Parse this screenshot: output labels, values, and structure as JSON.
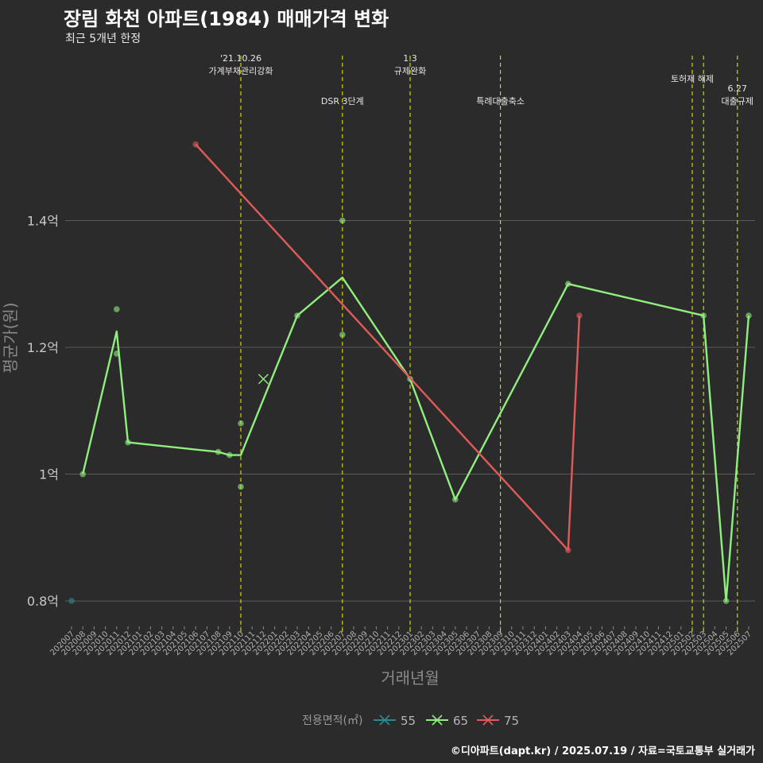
{
  "title": "장림 화천 아파트(1984) 매매가격 변화",
  "subtitle": "최근 5개년 한정",
  "caption": "©디아파트(dapt.kr) / 2025.07.19 / 자료=국토교통부 실거래가",
  "colors": {
    "55": "#2a8a8f",
    "65": "#90ee7e",
    "75": "#e05a5a",
    "vline": "#d4d400",
    "grid": "#6a6a6a",
    "text": "#bdbdbd"
  },
  "chart_data": {
    "type": "line",
    "xlabel": "거래년월",
    "ylabel": "평균가(원)",
    "x_categories": [
      "202007",
      "202008",
      "202009",
      "202010",
      "202011",
      "202012",
      "202101",
      "202102",
      "202103",
      "202104",
      "202105",
      "202106",
      "202107",
      "202108",
      "202109",
      "202110",
      "202111",
      "202112",
      "202201",
      "202202",
      "202203",
      "202204",
      "202205",
      "202206",
      "202207",
      "202208",
      "202209",
      "202210",
      "202211",
      "202212",
      "202301",
      "202302",
      "202303",
      "202304",
      "202305",
      "202306",
      "202307",
      "202308",
      "202309",
      "202310",
      "202311",
      "202312",
      "202401",
      "202402",
      "202403",
      "202404",
      "202405",
      "202406",
      "202407",
      "202408",
      "202409",
      "202410",
      "202411",
      "202412",
      "202501",
      "202502",
      "202503",
      "202504",
      "202505",
      "202506",
      "202507"
    ],
    "yticks": [
      {
        "value": 80000000,
        "label": "0.8억"
      },
      {
        "value": 100000000,
        "label": "1억"
      },
      {
        "value": 120000000,
        "label": "1.2억"
      },
      {
        "value": 140000000,
        "label": "1.4억"
      }
    ],
    "ylim": [
      76000000,
      167000000
    ],
    "legend": {
      "title": "전용면적(㎡)",
      "position": "bottom",
      "entries": [
        "55",
        "65",
        "75"
      ]
    },
    "series": [
      {
        "name": "55",
        "line": [],
        "points": [
          [
            "202007",
            80000000
          ]
        ],
        "cross": []
      },
      {
        "name": "65",
        "line": [
          [
            "202008",
            100000000
          ],
          [
            "202011",
            122500000
          ],
          [
            "202012",
            105000000
          ],
          [
            "202108",
            103500000
          ],
          [
            "202109",
            103000000
          ],
          [
            "202110",
            103000000
          ],
          [
            "202203",
            125000000
          ],
          [
            "202207",
            131000000
          ],
          [
            "202301",
            115000000
          ],
          [
            "202305",
            96000000
          ],
          [
            "202403",
            130000000
          ],
          [
            "202503",
            125000000
          ],
          [
            "202505",
            80000000
          ],
          [
            "202507",
            125000000
          ]
        ],
        "points": [
          [
            "202008",
            100000000
          ],
          [
            "202011",
            126000000
          ],
          [
            "202011",
            119000000
          ],
          [
            "202012",
            105000000
          ],
          [
            "202108",
            103500000
          ],
          [
            "202109",
            103000000
          ],
          [
            "202110",
            108000000
          ],
          [
            "202110",
            98000000
          ],
          [
            "202203",
            125000000
          ],
          [
            "202207",
            140000000
          ],
          [
            "202207",
            122000000
          ],
          [
            "202301",
            115000000
          ],
          [
            "202305",
            96000000
          ],
          [
            "202403",
            130000000
          ],
          [
            "202503",
            125000000
          ],
          [
            "202505",
            80000000
          ],
          [
            "202507",
            125000000
          ]
        ],
        "cross": [
          [
            "202112",
            115000000
          ]
        ]
      },
      {
        "name": "75",
        "line": [
          [
            "202106",
            152000000
          ],
          [
            "202403",
            88000000
          ],
          [
            "202404",
            125000000
          ]
        ],
        "points": [
          [
            "202106",
            152000000
          ],
          [
            "202403",
            88000000
          ],
          [
            "202404",
            125000000
          ]
        ],
        "cross": []
      }
    ],
    "events": [
      {
        "x": "202110",
        "lines": [
          "'21.10.26",
          "가계부채관리강화"
        ],
        "level": 0
      },
      {
        "x": "202207",
        "lines": [
          "DSR 3단계"
        ],
        "level": 1
      },
      {
        "x": "202301",
        "lines": [
          "1.3",
          "규제완화"
        ],
        "level": 0
      },
      {
        "x": "202309",
        "lines": [
          "특례대출축소"
        ],
        "level": 1
      },
      {
        "x": "202502",
        "lines": [
          "토허제 해제"
        ],
        "level": 0
      },
      {
        "x": "202503",
        "lines": [],
        "level": 0
      },
      {
        "x": "202506",
        "lines": [
          "6.27",
          "대출규제"
        ],
        "level": 1
      }
    ]
  }
}
